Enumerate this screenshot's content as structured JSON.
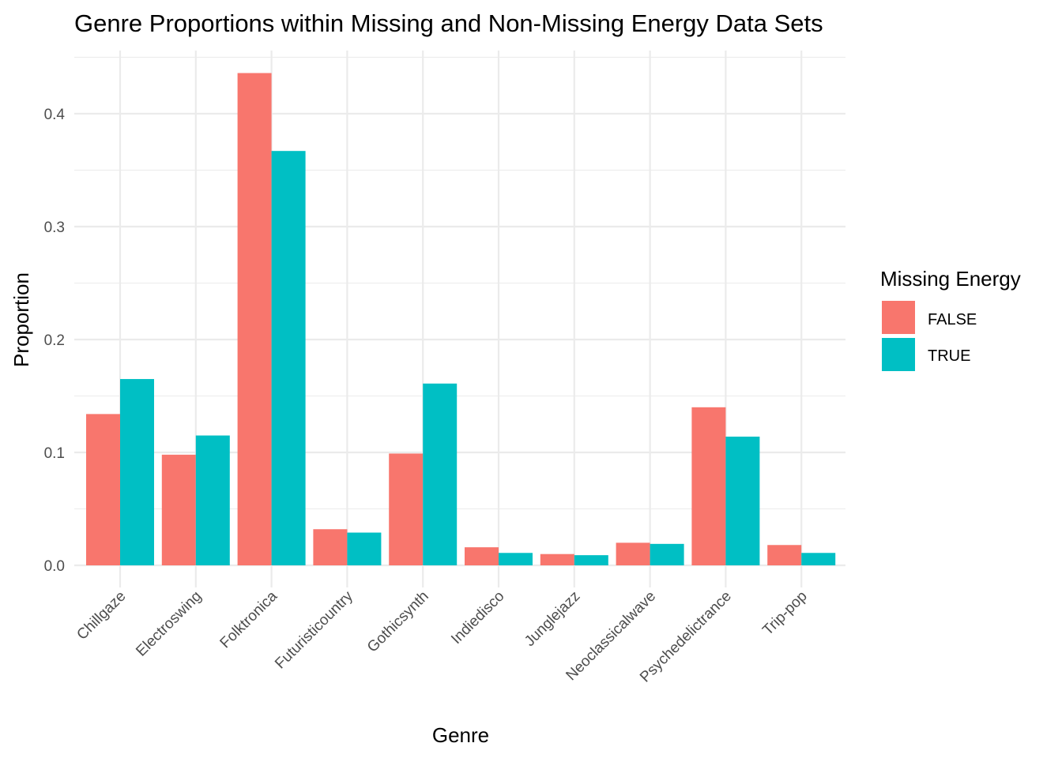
{
  "chart_data": {
    "type": "bar",
    "title": "Genre Proportions within Missing and Non-Missing Energy Data Sets",
    "xlabel": "Genre",
    "ylabel": "Proportion",
    "categories": [
      "Chillgaze",
      "Electroswing",
      "Folktronica",
      "Futuristicountry",
      "Gothicsynth",
      "Indiedisco",
      "Junglejazz",
      "Neoclassicalwave",
      "Psychedelictrance",
      "Trip-pop"
    ],
    "series": [
      {
        "name": "FALSE",
        "color": "#F8766D",
        "values": [
          0.134,
          0.098,
          0.436,
          0.032,
          0.099,
          0.016,
          0.01,
          0.02,
          0.14,
          0.018
        ]
      },
      {
        "name": "TRUE",
        "color": "#00BFC4",
        "values": [
          0.165,
          0.115,
          0.367,
          0.029,
          0.161,
          0.011,
          0.009,
          0.019,
          0.114,
          0.011
        ]
      }
    ],
    "ylim": [
      0,
      0.45
    ],
    "yticks": [
      0.0,
      0.1,
      0.2,
      0.3,
      0.4
    ],
    "ytick_labels": [
      "0.0",
      "0.1",
      "0.2",
      "0.3",
      "0.4"
    ],
    "legend": {
      "title": "Missing Energy",
      "position": "right",
      "labels": [
        "FALSE",
        "TRUE"
      ]
    },
    "grid": true,
    "bar_position": "dodge"
  }
}
